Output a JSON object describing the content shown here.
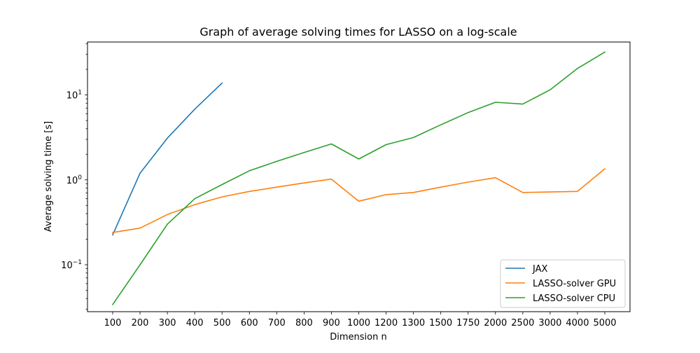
{
  "chart_data": {
    "type": "line",
    "title": "Graph of average solving times for LASSO on a log-scale",
    "xlabel": "Dimension n",
    "ylabel": "Average solving time [s]",
    "categories": [
      "100",
      "200",
      "300",
      "400",
      "500",
      "600",
      "700",
      "800",
      "900",
      "1000",
      "1200",
      "1300",
      "1500",
      "1750",
      "2000",
      "2500",
      "3000",
      "4000",
      "5000"
    ],
    "yscale": "log",
    "ylim": [
      0.028,
      42
    ],
    "yticks": [
      {
        "value": 0.1,
        "base": "10",
        "exp": "−1"
      },
      {
        "value": 1,
        "base": "10",
        "exp": "0"
      },
      {
        "value": 10,
        "base": "10",
        "exp": "1"
      }
    ],
    "grid": false,
    "legend": "lower-right",
    "series": [
      {
        "name": "JAX",
        "color": "#1f77b4",
        "values": [
          0.225,
          1.2,
          3.1,
          6.8,
          13.8,
          null,
          null,
          null,
          null,
          null,
          null,
          null,
          null,
          null,
          null,
          null,
          null,
          null,
          null
        ]
      },
      {
        "name": "LASSO-solver GPU",
        "color": "#ff7f0e",
        "values": [
          0.24,
          0.27,
          0.39,
          0.51,
          0.63,
          0.73,
          0.82,
          0.92,
          1.02,
          0.56,
          0.67,
          0.71,
          0.82,
          0.94,
          1.06,
          0.71,
          0.72,
          0.73,
          1.35
        ]
      },
      {
        "name": "LASSO-solver CPU",
        "color": "#2ca02c",
        "values": [
          0.034,
          0.1,
          0.3,
          0.6,
          0.88,
          1.28,
          1.65,
          2.1,
          2.65,
          1.76,
          2.6,
          3.15,
          4.45,
          6.2,
          8.2,
          7.8,
          11.5,
          20.5,
          32
        ]
      }
    ]
  }
}
